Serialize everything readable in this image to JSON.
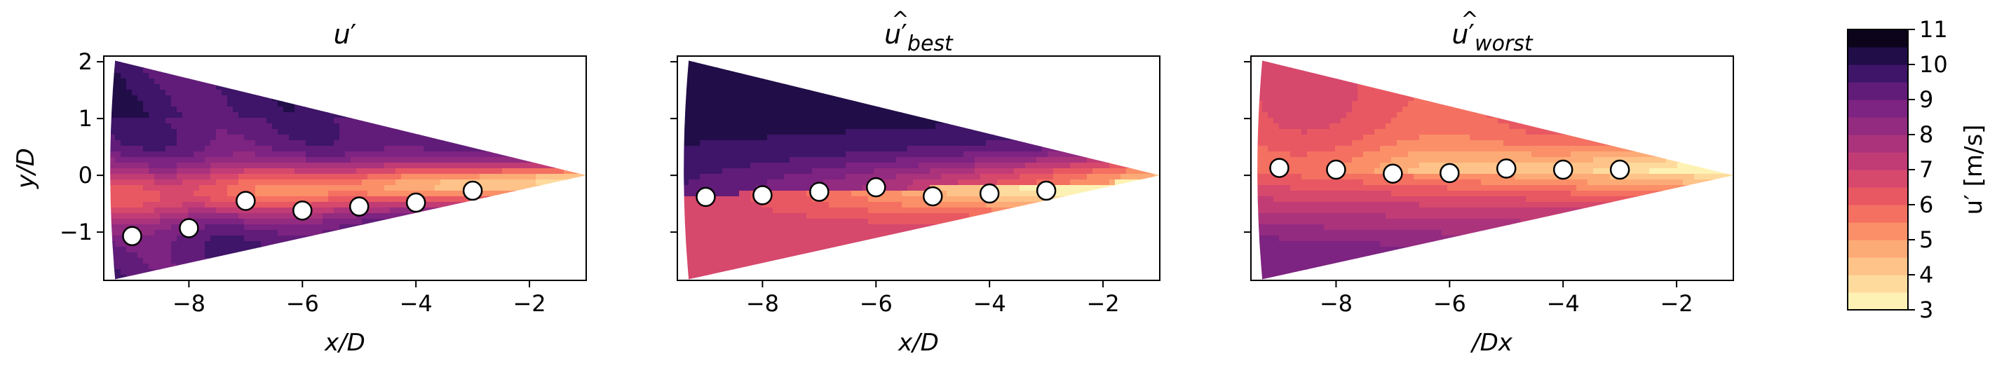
{
  "chart_data": {
    "type": "heatmap",
    "panels": [
      {
        "title_base": "u",
        "title_prime": "′",
        "title_hat": false,
        "title_sub": "",
        "xlabel": "x/D",
        "ylabel": "y/D",
        "xlim": [
          -9.5,
          -1
        ],
        "ylim": [
          -1.85,
          2.1
        ],
        "xticks": [
          "−8",
          "−6",
          "−4",
          "−2"
        ],
        "xtick_values": [
          -8,
          -6,
          -4,
          -2
        ],
        "yticks": [
          "2",
          "1",
          "0",
          "−1"
        ],
        "ytick_values": [
          2,
          1,
          0,
          -1
        ],
        "wake_profile": "low_center",
        "markers": [
          {
            "x": -9,
            "y": -1.07
          },
          {
            "x": -8,
            "y": -0.93
          },
          {
            "x": -7,
            "y": -0.45
          },
          {
            "x": -6,
            "y": -0.62
          },
          {
            "x": -5,
            "y": -0.55
          },
          {
            "x": -4,
            "y": -0.48
          },
          {
            "x": -3,
            "y": -0.27
          }
        ]
      },
      {
        "title_base": "u",
        "title_prime": "′",
        "title_hat": true,
        "title_sub": "best",
        "xlabel": "x/D",
        "ylabel": "",
        "xlim": [
          -9.5,
          -1
        ],
        "ylim": [
          -1.85,
          2.1
        ],
        "xticks": [
          "−8",
          "−6",
          "−4",
          "−2"
        ],
        "xtick_values": [
          -8,
          -6,
          -4,
          -2
        ],
        "yticks": [],
        "ytick_values": [
          2,
          1,
          0,
          -1
        ],
        "wake_profile": "low_below",
        "markers": [
          {
            "x": -9,
            "y": -0.38
          },
          {
            "x": -8,
            "y": -0.35
          },
          {
            "x": -7,
            "y": -0.29
          },
          {
            "x": -6,
            "y": -0.21
          },
          {
            "x": -5,
            "y": -0.37
          },
          {
            "x": -4,
            "y": -0.32
          },
          {
            "x": -3,
            "y": -0.27
          }
        ]
      },
      {
        "title_base": "u",
        "title_prime": "′",
        "title_hat": true,
        "title_sub": "worst",
        "xlabel": "/Dx",
        "ylabel": "",
        "xlim": [
          -9.5,
          -1
        ],
        "ylim": [
          -1.85,
          2.1
        ],
        "xticks": [
          "−8",
          "−6",
          "−4",
          "−2"
        ],
        "xtick_values": [
          -8,
          -6,
          -4,
          -2
        ],
        "yticks": [],
        "ytick_values": [
          2,
          1,
          0,
          -1
        ],
        "wake_profile": "high_below",
        "markers": [
          {
            "x": -9,
            "y": 0.13
          },
          {
            "x": -8,
            "y": 0.1
          },
          {
            "x": -7,
            "y": 0.03
          },
          {
            "x": -6,
            "y": 0.04
          },
          {
            "x": -5,
            "y": 0.12
          },
          {
            "x": -4,
            "y": 0.1
          },
          {
            "x": -3,
            "y": 0.1
          }
        ]
      }
    ],
    "colorbar": {
      "label": "u′ [m/s]",
      "range": [
        3,
        11
      ],
      "ticks": [
        "11",
        "10",
        "9",
        "8",
        "7",
        "6",
        "5",
        "4",
        "3"
      ],
      "tick_values": [
        11,
        10,
        9,
        8,
        7,
        6,
        5,
        4,
        3
      ],
      "colormap": "magma_r"
    },
    "grid": false,
    "legend": "none"
  }
}
